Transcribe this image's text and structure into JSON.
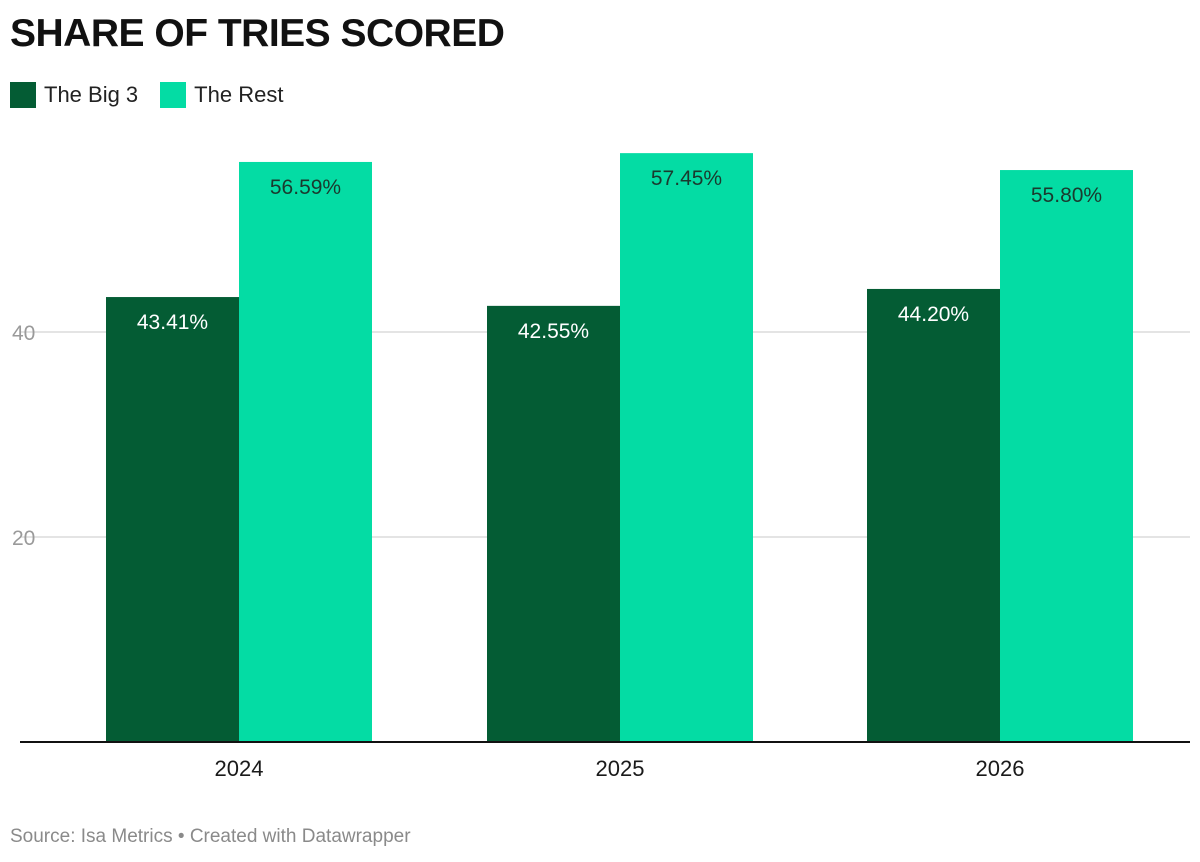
{
  "chart_data": {
    "type": "bar",
    "title": "SHARE OF TRIES SCORED",
    "categories": [
      "2024",
      "2025",
      "2026"
    ],
    "series": [
      {
        "name": "The Big 3",
        "values": [
          43.41,
          42.55,
          44.2
        ],
        "labels": [
          "43.41%",
          "42.55%",
          "44.20%"
        ],
        "color": "#045c34",
        "label_color": "#ffffff"
      },
      {
        "name": "The Rest",
        "values": [
          56.59,
          57.45,
          55.8
        ],
        "labels": [
          "56.59%",
          "57.45%",
          "55.80%"
        ],
        "color": "#04dca4",
        "label_color": "#1a3a2e"
      }
    ],
    "yticks": [
      20,
      40
    ],
    "ylim": [
      0,
      60
    ],
    "grid": true,
    "legend_position": "top-left",
    "xlabel": "",
    "ylabel": ""
  },
  "footer": {
    "source": "Source: Isa Metrics • Created with Datawrapper"
  }
}
